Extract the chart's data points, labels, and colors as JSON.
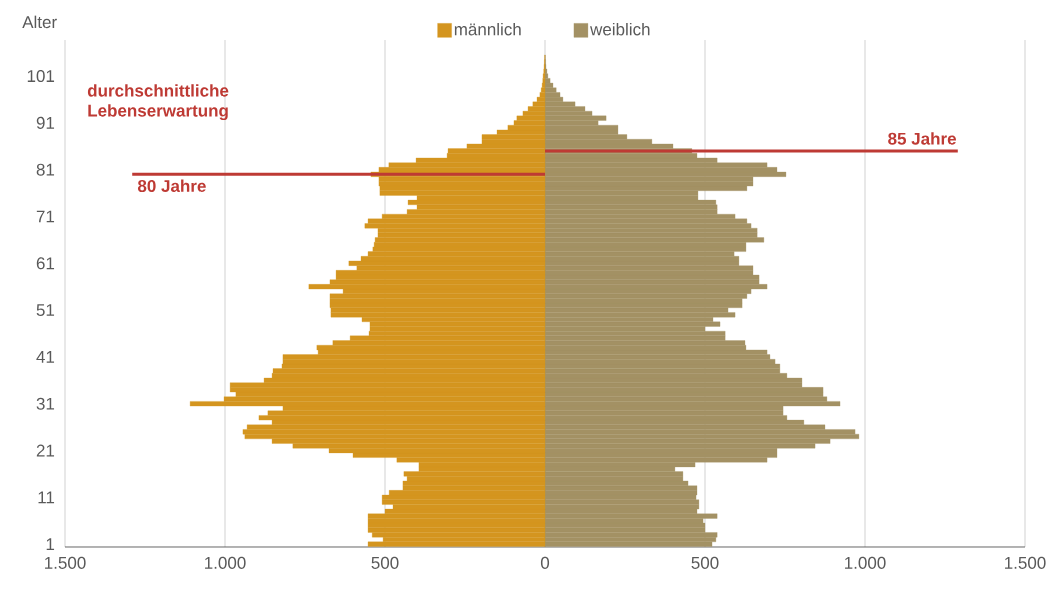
{
  "chart_data": {
    "type": "bar",
    "orientation": "horizontal",
    "ylabel": "Alter",
    "annotations": [
      "durchschnittliche Lebenserwartung"
    ],
    "x": [
      1,
      2,
      3,
      4,
      5,
      6,
      7,
      8,
      9,
      10,
      11,
      12,
      13,
      14,
      15,
      16,
      17,
      18,
      19,
      20,
      21,
      22,
      23,
      24,
      25,
      26,
      27,
      28,
      29,
      30,
      31,
      32,
      33,
      34,
      35,
      36,
      37,
      38,
      39,
      40,
      41,
      42,
      43,
      44,
      45,
      46,
      47,
      48,
      49,
      50,
      51,
      52,
      53,
      54,
      55,
      56,
      57,
      58,
      59,
      60,
      61,
      62,
      63,
      64,
      65,
      66,
      67,
      68,
      69,
      70,
      71,
      72,
      73,
      74,
      75,
      76,
      77,
      78,
      79,
      80,
      81,
      82,
      83,
      84,
      85,
      86,
      87,
      88,
      89,
      90,
      91,
      92,
      93,
      94,
      95,
      96,
      97,
      98,
      99,
      100,
      101,
      102,
      103,
      104,
      105
    ],
    "series": [
      {
        "name": "männlich",
        "color": "#d4951f",
        "values": [
          -553,
          -506,
          -540,
          -553,
          -553,
          -553,
          -553,
          -500,
          -475,
          -509,
          -509,
          -487,
          -444,
          -444,
          -431,
          -441,
          -394,
          -394,
          -463,
          -600,
          -675,
          -788,
          -853,
          -938,
          -944,
          -931,
          -853,
          -894,
          -866,
          -819,
          -1109,
          -1003,
          -966,
          -984,
          -984,
          -878,
          -853,
          -850,
          -822,
          -819,
          -819,
          -709,
          -713,
          -663,
          -609,
          -550,
          -547,
          -547,
          -572,
          -669,
          -669,
          -672,
          -672,
          -672,
          -631,
          -738,
          -672,
          -653,
          -653,
          -588,
          -613,
          -575,
          -553,
          -538,
          -534,
          -531,
          -522,
          -522,
          -563,
          -553,
          -509,
          -431,
          -400,
          -428,
          -400,
          -516,
          -516,
          -519,
          -519,
          -544,
          -519,
          -488,
          -403,
          -306,
          -303,
          -244,
          -197,
          -197,
          -150,
          -116,
          -97,
          -88,
          -69,
          -53,
          -38,
          -25,
          -16,
          -12,
          -9,
          -7,
          -6,
          -4,
          -3,
          -2,
          -1
        ]
      },
      {
        "name": "weiblich",
        "color": "#a39164",
        "values": [
          522,
          534,
          538,
          500,
          500,
          494,
          538,
          475,
          481,
          481,
          472,
          475,
          475,
          447,
          431,
          431,
          406,
          469,
          694,
          725,
          725,
          844,
          891,
          981,
          969,
          875,
          809,
          756,
          744,
          744,
          922,
          881,
          869,
          869,
          803,
          803,
          756,
          734,
          734,
          719,
          703,
          694,
          628,
          625,
          563,
          563,
          500,
          547,
          525,
          594,
          572,
          616,
          616,
          631,
          644,
          694,
          669,
          669,
          650,
          650,
          606,
          606,
          591,
          628,
          628,
          684,
          663,
          663,
          644,
          631,
          594,
          538,
          538,
          534,
          478,
          478,
          631,
          650,
          650,
          753,
          725,
          694,
          538,
          475,
          459,
          400,
          334,
          256,
          228,
          228,
          166,
          191,
          147,
          125,
          94,
          56,
          47,
          35,
          25,
          16,
          9,
          6,
          3,
          2,
          1
        ]
      }
    ],
    "xlim": [
      -1500,
      1500
    ],
    "xticks": [
      {
        "value": -1500,
        "label": "1.500"
      },
      {
        "value": -1000,
        "label": "1.000"
      },
      {
        "value": -500,
        "label": "500"
      },
      0,
      500,
      {
        "value": 1000,
        "label": "1.000"
      },
      {
        "value": 1500,
        "label": "1.500"
      }
    ],
    "ylim": [
      0.4,
      108.7
    ],
    "yticks": [
      1,
      11,
      21,
      31,
      41,
      51,
      61,
      71,
      81,
      91,
      101
    ],
    "ref_lines": [
      {
        "axis": "y",
        "value": 80,
        "label": "80 Jahre",
        "color": "#be3a34"
      },
      {
        "axis": "y",
        "value": 85,
        "label": "85 Jahre",
        "color": "#be3a34"
      }
    ],
    "grid": "x",
    "legend": "top",
    "stacked": true
  }
}
